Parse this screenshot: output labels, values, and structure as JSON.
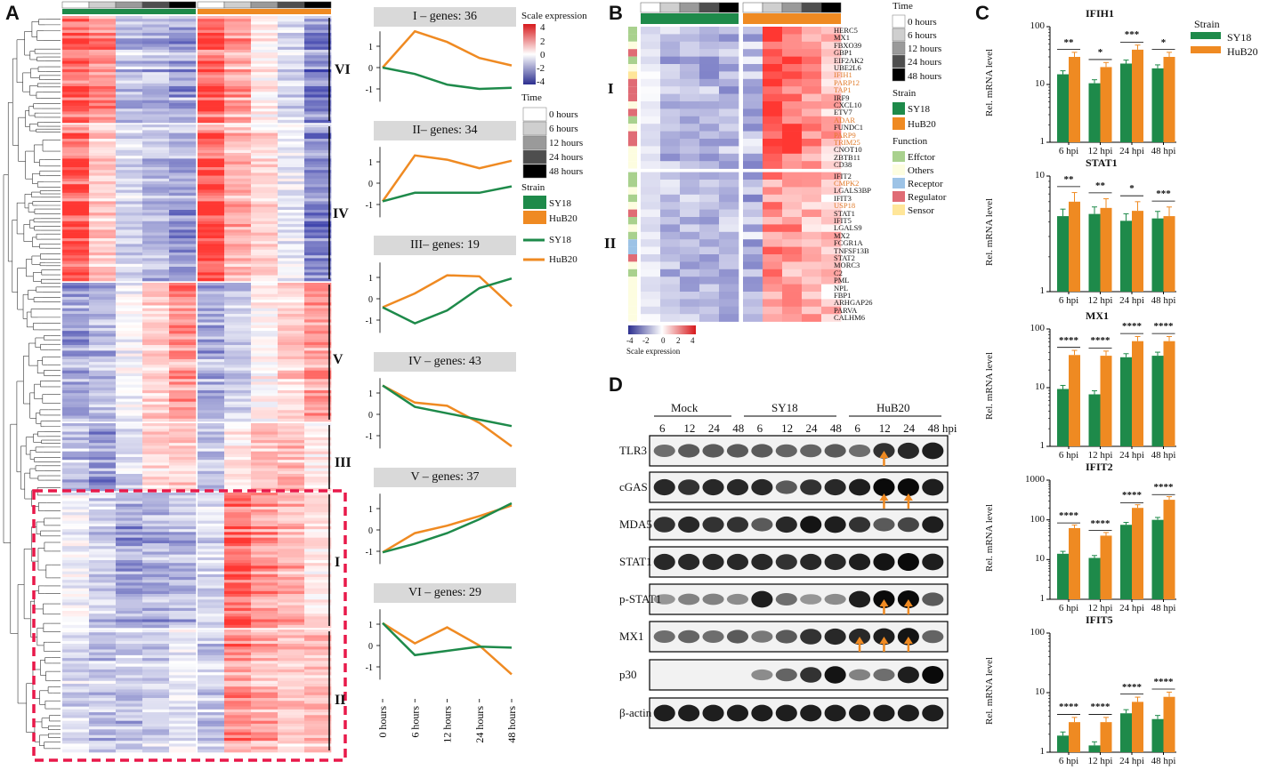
{
  "panels": {
    "A": "A",
    "B": "B",
    "C": "C",
    "D": "D"
  },
  "panel_a": {
    "clusters": [
      "VI",
      "IV",
      "V",
      "III",
      "I",
      "II"
    ],
    "legend": {
      "scale_title": "Scale expression",
      "scale_ticks": [
        "4",
        "2",
        "0",
        "-2",
        "-4"
      ],
      "time_title": "Time",
      "time_items": [
        "0  hours",
        "6  hours",
        "12 hours",
        "24 hours",
        "48 hours"
      ],
      "strain_title": "Strain",
      "strain_items": [
        "SY18",
        "HuB20"
      ],
      "line_items": [
        "SY18",
        "HuB20"
      ]
    },
    "trend_plots": [
      {
        "title": "I – genes: 36",
        "yticks": [
          "1",
          "0",
          "-1"
        ],
        "sy18": [
          0,
          -0.3,
          -0.8,
          -1.0,
          -0.95
        ],
        "hub20": [
          0,
          1.7,
          1.2,
          0.45,
          0.1
        ]
      },
      {
        "title": "II– genes: 34",
        "yticks": [
          "1",
          "0",
          "-1"
        ],
        "sy18": [
          -0.85,
          -0.45,
          -0.45,
          -0.45,
          -0.15
        ],
        "hub20": [
          -0.85,
          1.3,
          1.1,
          0.7,
          1.05
        ]
      },
      {
        "title": "III– genes: 19",
        "yticks": [
          "1",
          "0",
          "-1"
        ],
        "sy18": [
          -0.4,
          -1.15,
          -0.55,
          0.5,
          0.95
        ],
        "hub20": [
          -0.4,
          0.25,
          1.1,
          1.05,
          -0.35
        ]
      },
      {
        "title": "IV – genes: 43",
        "yticks": [
          "1",
          "0",
          "-1"
        ],
        "sy18": [
          1.35,
          0.35,
          0.05,
          -0.25,
          -0.55
        ],
        "hub20": [
          1.35,
          0.55,
          0.4,
          -0.4,
          -1.5
        ]
      },
      {
        "title": "V – genes: 37",
        "yticks": [
          "1",
          "0",
          "-1"
        ],
        "sy18": [
          -1.05,
          -0.65,
          -0.15,
          0.5,
          1.25
        ],
        "hub20": [
          -1.05,
          -0.15,
          0.2,
          0.65,
          1.15
        ]
      },
      {
        "title": "VI – genes: 29",
        "yticks": [
          "1",
          "0",
          "-1"
        ],
        "sy18": [
          1.05,
          -0.45,
          -0.25,
          -0.05,
          -0.1
        ],
        "hub20": [
          1.05,
          0.1,
          0.85,
          0.0,
          -1.35
        ]
      }
    ],
    "x_labels": [
      "0 hours",
      "6 hours",
      "12 hours",
      "24 hours",
      "48 hours"
    ]
  },
  "panel_b": {
    "clusters": [
      "I",
      "II"
    ],
    "genes": [
      {
        "name": "HERC5",
        "orange": false
      },
      {
        "name": "MX1",
        "orange": false
      },
      {
        "name": "FBXO39",
        "orange": false
      },
      {
        "name": "GBP1",
        "orange": false
      },
      {
        "name": "EIF2AK2",
        "orange": false
      },
      {
        "name": "UBE2L6",
        "orange": false
      },
      {
        "name": "IFIH1",
        "orange": true
      },
      {
        "name": "PARP12",
        "orange": true
      },
      {
        "name": "TAP1",
        "orange": true
      },
      {
        "name": "IRF9",
        "orange": false
      },
      {
        "name": "CXCL10",
        "orange": false
      },
      {
        "name": "ETV7",
        "orange": false
      },
      {
        "name": "ADAR",
        "orange": true
      },
      {
        "name": "FUNDC1",
        "orange": false
      },
      {
        "name": "PARP9",
        "orange": true
      },
      {
        "name": "TRIM25",
        "orange": true
      },
      {
        "name": "CNOT10",
        "orange": false
      },
      {
        "name": "ZBTB11",
        "orange": false
      },
      {
        "name": "CD38",
        "orange": false
      },
      {
        "name": "IFIT2",
        "orange": false
      },
      {
        "name": "CMPK2",
        "orange": true
      },
      {
        "name": "LGALS3BP",
        "orange": false
      },
      {
        "name": "IFIT3",
        "orange": false
      },
      {
        "name": "USP18",
        "orange": true
      },
      {
        "name": "STAT1",
        "orange": false
      },
      {
        "name": "IFIT5",
        "orange": false
      },
      {
        "name": "LGALS9",
        "orange": false
      },
      {
        "name": "MX2",
        "orange": false
      },
      {
        "name": "FCGR1A",
        "orange": false
      },
      {
        "name": "TNFSF13B",
        "orange": false
      },
      {
        "name": "STAT2",
        "orange": false
      },
      {
        "name": "MORC3",
        "orange": false
      },
      {
        "name": "C2",
        "orange": false
      },
      {
        "name": "PML",
        "orange": false
      },
      {
        "name": "NPL",
        "orange": false
      },
      {
        "name": "FBP1",
        "orange": false
      },
      {
        "name": "ARHGAP26",
        "orange": false
      },
      {
        "name": "PARVA",
        "orange": false
      },
      {
        "name": "CALHM6",
        "orange": false
      }
    ],
    "legend": {
      "time_title": "Time",
      "time_items": [
        "0  hours",
        "6  hours",
        "12 hours",
        "24 hours",
        "48 hours"
      ],
      "strain_title": "Strain",
      "strain_items": [
        "SY18",
        "HuB20"
      ],
      "function_title": "Function",
      "function_items": [
        {
          "label": "Effctor",
          "color": "#a9d18e"
        },
        {
          "label": "Others",
          "color": "#fdfde0"
        },
        {
          "label": "Receptor",
          "color": "#9dc3e6"
        },
        {
          "label": "Regulator",
          "color": "#e06c75"
        },
        {
          "label": "Sensor",
          "color": "#ffe699"
        }
      ],
      "scale_ticks": [
        "-4",
        "-2",
        "0",
        "2",
        "4"
      ],
      "scale_title": "Scale expression"
    }
  },
  "panel_c": {
    "legend_title": "Strain",
    "legend_items": [
      "SY18",
      "HuB20"
    ],
    "ylabel": "Rel. mRNA level",
    "categories": [
      "6 hpi",
      "12 hpi",
      "24 hpi",
      "48 hpi"
    ],
    "charts": [
      {
        "title": "IFIH1",
        "yticks": [
          "100",
          "10",
          "1"
        ],
        "sy18": [
          15,
          10.5,
          23,
          19
        ],
        "hub20": [
          30,
          20,
          40,
          30
        ],
        "sig": [
          "**",
          "*",
          "***",
          "*"
        ]
      },
      {
        "title": "STAT1",
        "yticks": [
          "10",
          "1"
        ],
        "sy18": [
          4.5,
          4.7,
          4.1,
          4.3
        ],
        "hub20": [
          6.0,
          5.3,
          5.0,
          4.5
        ],
        "sig": [
          "**",
          "**",
          "*",
          "***"
        ]
      },
      {
        "title": "MX1",
        "yticks": [
          "100",
          "10",
          "1"
        ],
        "sy18": [
          9.5,
          7.7,
          33,
          35
        ],
        "hub20": [
          36,
          35,
          62,
          62
        ],
        "sig": [
          "****",
          "****",
          "****",
          "****"
        ]
      },
      {
        "title": "IFIT2",
        "yticks": [
          "1000",
          "100",
          "10",
          "1"
        ],
        "sy18": [
          14,
          11,
          75,
          100
        ],
        "hub20": [
          62,
          40,
          200,
          320
        ],
        "sig": [
          "****",
          "****",
          "****",
          "****"
        ]
      },
      {
        "title": "IFIT5",
        "yticks": [
          "100",
          "10",
          "1"
        ],
        "sy18": [
          1.9,
          1.3,
          4.5,
          3.6
        ],
        "hub20": [
          3.2,
          3.2,
          7.0,
          8.5
        ],
        "sig": [
          "****",
          "****",
          "****",
          "****"
        ]
      }
    ],
    "colors": {
      "sy18": "#1e8a4a",
      "hub20": "#ef8a22"
    }
  },
  "panel_d": {
    "groups": [
      "Mock",
      "SY18",
      "HuB20"
    ],
    "timepoints": [
      "6",
      "12",
      "24",
      "48",
      "6",
      "12",
      "24",
      "48",
      "6",
      "12",
      "24",
      "48 hpi"
    ],
    "blots": [
      "TLR3",
      "cGAS",
      "MDA5",
      "STAT1",
      "p-STAT1",
      "MX1",
      "p30",
      "β-actin"
    ]
  }
}
